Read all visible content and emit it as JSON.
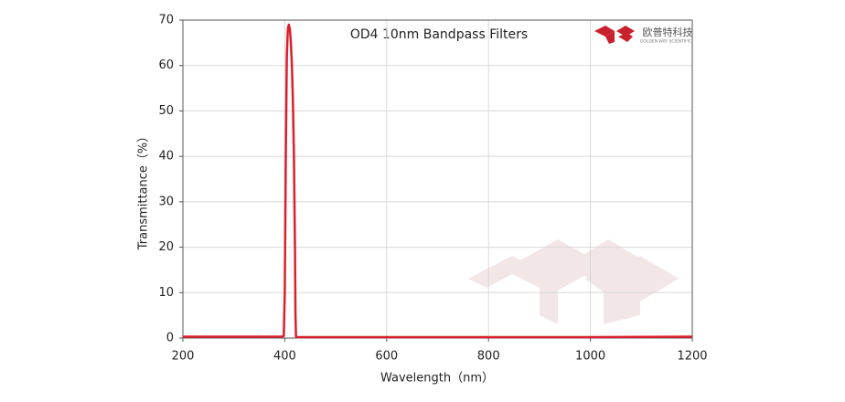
{
  "chart_data": {
    "type": "line",
    "title": "OD4 10nm Bandpass Filters",
    "x_label": "Wavelength（nm）",
    "y_label": "Transmittance（%）",
    "x": [
      200,
      395,
      398,
      400,
      402,
      404,
      406,
      408,
      410,
      412,
      414,
      416,
      418,
      420,
      421,
      422,
      424,
      600,
      800,
      1000,
      1200
    ],
    "series": [
      {
        "color": "#d9202c",
        "values": [
          0.3,
          0.3,
          0.5,
          10,
          40,
          62,
          68,
          69,
          68,
          65,
          60,
          52,
          40,
          20,
          5,
          0.3,
          0.2,
          0.2,
          0.2,
          0.2,
          0.3
        ]
      }
    ],
    "xlim": [
      200,
      1200
    ],
    "xticks": [
      200,
      400,
      600,
      800,
      1000,
      1200
    ],
    "ylim": [
      0,
      70
    ],
    "yticks": [
      0,
      10,
      20,
      30,
      40,
      50,
      60,
      70
    ],
    "grid": true
  },
  "logo": {
    "name": "欧普特科技",
    "tagline": "GOLDEN WAY SCIENTIFIC"
  }
}
